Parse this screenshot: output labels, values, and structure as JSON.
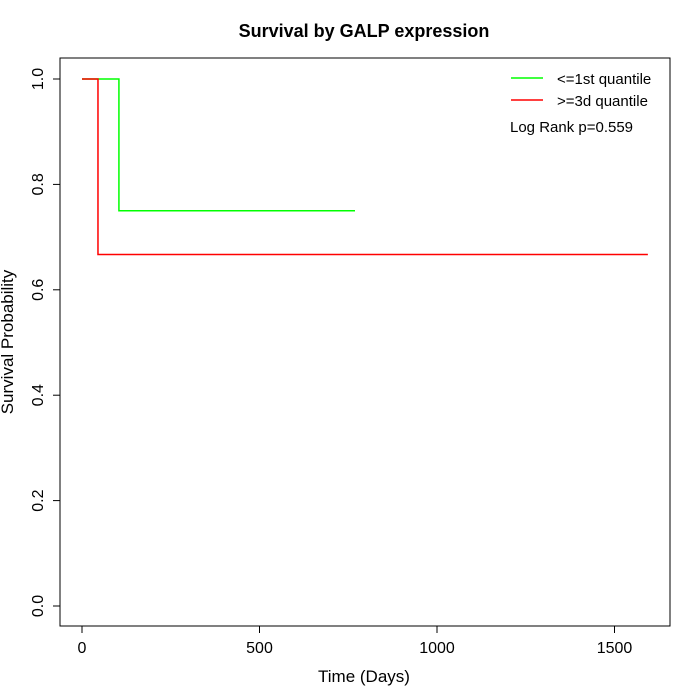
{
  "chart_data": {
    "type": "line",
    "title": "Survival by GALP expression",
    "xlabel": "Time (Days)",
    "ylabel": "Survival Probability",
    "xlim": [
      -120,
      1650
    ],
    "ylim": [
      -0.04,
      1.04
    ],
    "xticks": [
      0,
      500,
      1000,
      1500
    ],
    "yticks": [
      0.0,
      0.2,
      0.4,
      0.6,
      0.8,
      1.0
    ],
    "ytick_labels": [
      "0.0",
      "0.2",
      "0.4",
      "0.6",
      "0.8",
      "1.0"
    ],
    "grid": false,
    "legend_position": "top-right",
    "annotation": "Log Rank p=0.559",
    "series": [
      {
        "name": "<=1st quantile",
        "color": "#00ff00",
        "step": true,
        "x": [
          0,
          104,
          104,
          769
        ],
        "y": [
          1.0,
          1.0,
          0.75,
          0.75
        ]
      },
      {
        "name": ">=3d quantile",
        "color": "#ff0000",
        "step": true,
        "x": [
          0,
          45,
          45,
          1594
        ],
        "y": [
          1.0,
          1.0,
          0.667,
          0.667
        ]
      }
    ]
  }
}
